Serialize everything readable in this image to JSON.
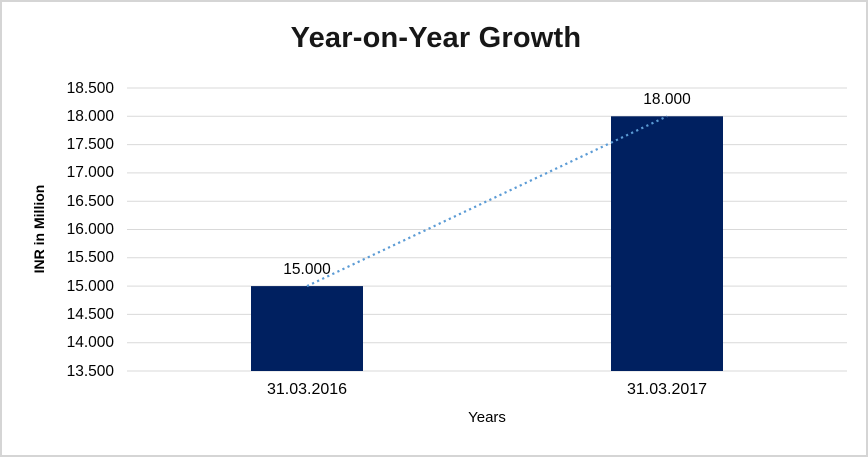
{
  "page": {
    "background": "#ffffff",
    "border_color": "#d5d5d5"
  },
  "chart_data": {
    "type": "bar",
    "title": "Year-on-Year Growth",
    "xlabel": "Years",
    "ylabel": "INR in Million",
    "categories": [
      "31.03.2016",
      "31.03.2017"
    ],
    "values": [
      15000,
      18000
    ],
    "data_labels": [
      "15.000",
      "18.000"
    ],
    "ylim": [
      13500,
      18500
    ],
    "ytick_step": 500,
    "ytick_labels": [
      "13.500",
      "14.000",
      "14.500",
      "15.000",
      "15.500",
      "16.000",
      "16.500",
      "17.000",
      "17.500",
      "18.000",
      "18.500"
    ],
    "grid": true,
    "legend": "none",
    "bar_color": "#002060",
    "gridline_color": "#d9d9d9",
    "trendline": {
      "style": "dotted",
      "color": "#5b9bd5",
      "from_value": 15000,
      "to_value": 18000
    }
  }
}
